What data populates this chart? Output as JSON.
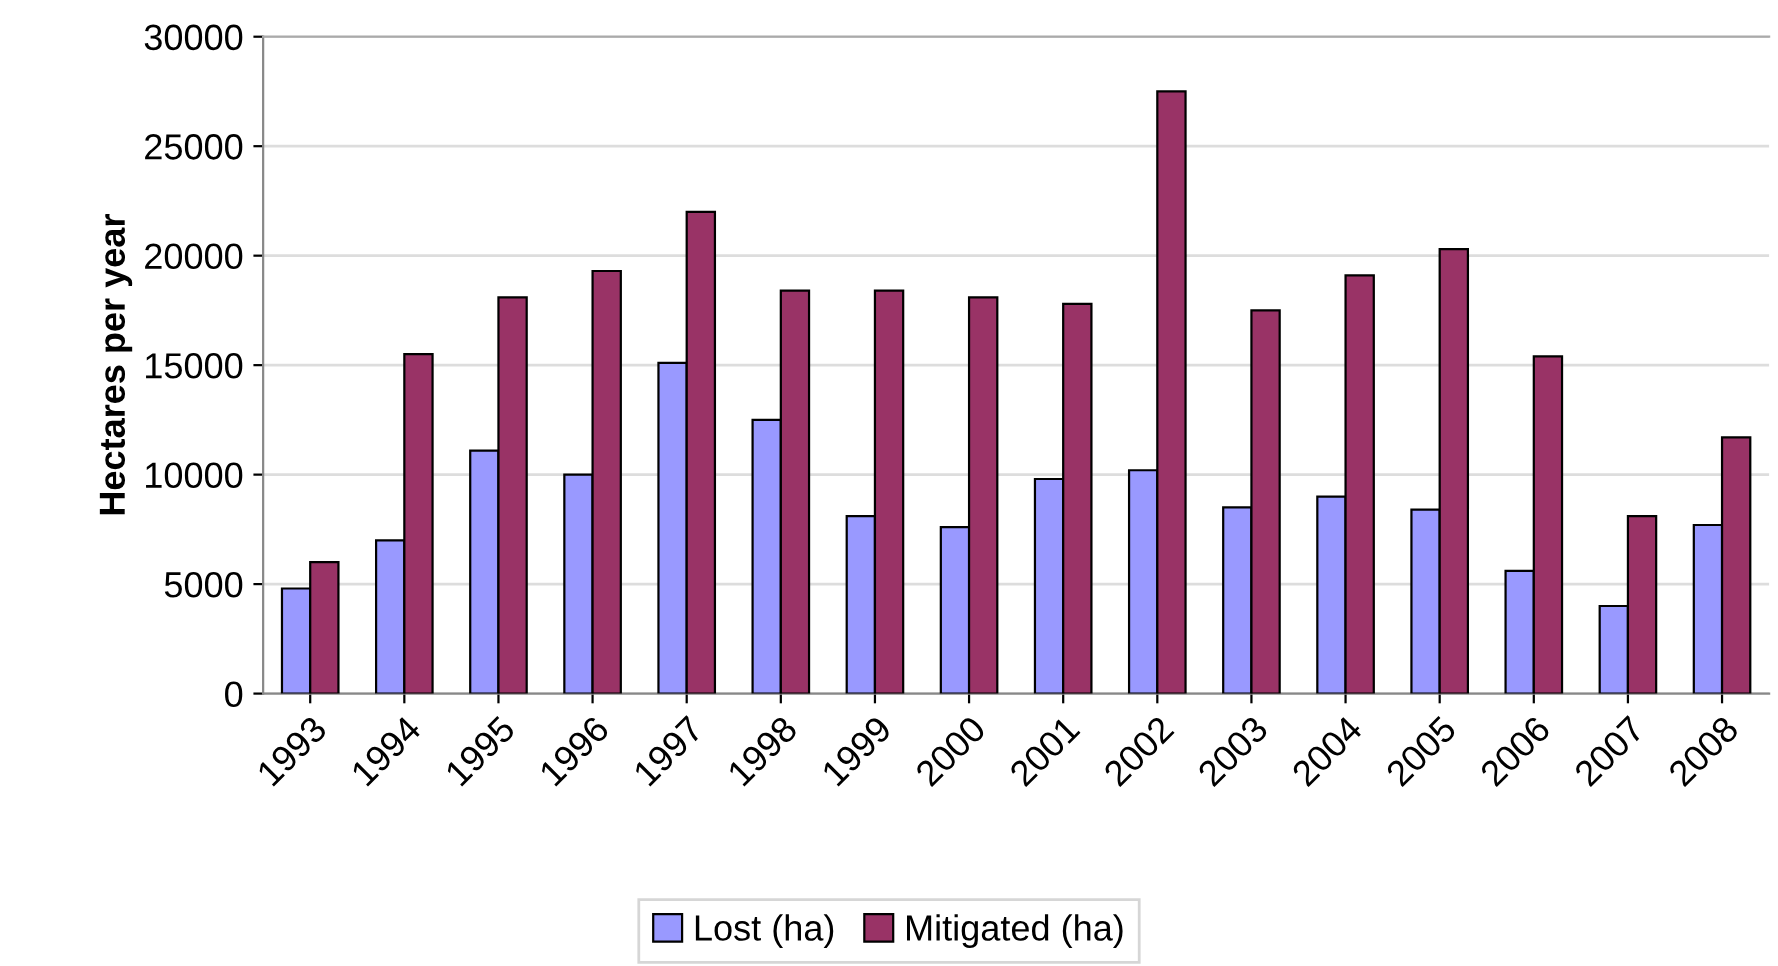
{
  "chart_data": {
    "type": "bar",
    "ylabel": "Hectares per year",
    "categories": [
      "1993",
      "1994",
      "1995",
      "1996",
      "1997",
      "1998",
      "1999",
      "2000",
      "2001",
      "2002",
      "2003",
      "2004",
      "2005",
      "2006",
      "2007",
      "2008"
    ],
    "series": [
      {
        "name": "Lost (ha)",
        "color": "#9999ff",
        "values": [
          4800,
          7000,
          11100,
          10000,
          15100,
          12500,
          8100,
          7600,
          9800,
          10200,
          8500,
          9000,
          8400,
          5600,
          4000,
          7700
        ]
      },
      {
        "name": "Mitigated (ha)",
        "color": "#993366",
        "values": [
          6000,
          15500,
          18100,
          19300,
          22000,
          18400,
          18400,
          18100,
          17800,
          27500,
          17500,
          19100,
          20300,
          15400,
          8100,
          11700
        ]
      }
    ],
    "ylim": [
      0,
      30000
    ],
    "yticks": [
      0,
      5000,
      10000,
      15000,
      20000,
      25000,
      30000
    ],
    "grid": "y",
    "legend": "bottom"
  }
}
